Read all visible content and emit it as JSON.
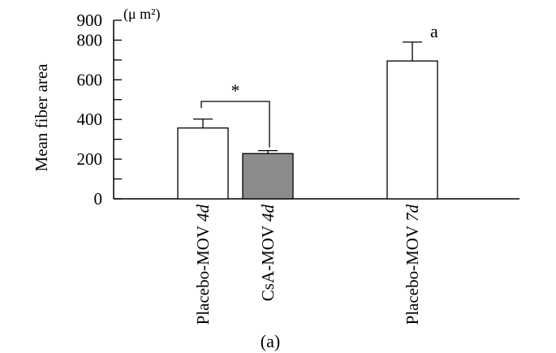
{
  "chart_data": {
    "type": "bar",
    "ylabel": "Mean fiber area",
    "unit_label": "(μ m²)",
    "panel_label": "(a)",
    "categories": [
      {
        "prefix": "Placebo-MOV ",
        "italic": "4d"
      },
      {
        "prefix": "CsA-MOV ",
        "italic": "4d"
      },
      {
        "prefix": "Placebo-MOV ",
        "italic": "7d"
      }
    ],
    "values": [
      357,
      228,
      695
    ],
    "errors": [
      45,
      15,
      95
    ],
    "fill_colors": [
      "#ffffff",
      "#8c8c8c",
      "#ffffff"
    ],
    "ylim": [
      0,
      900
    ],
    "yticks": [
      0,
      200,
      400,
      600,
      800,
      900
    ],
    "yticks_minor": [
      100,
      300,
      500,
      700
    ],
    "significance": {
      "symbol": "*",
      "between": [
        0,
        1
      ]
    },
    "annotations": [
      {
        "category": 2,
        "text": "a"
      }
    ],
    "grid": false
  }
}
